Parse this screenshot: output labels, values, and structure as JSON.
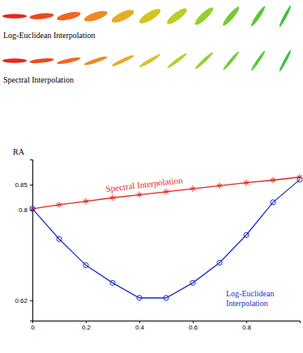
{
  "chart_data": {
    "type": "line",
    "y_label": "RA",
    "x": [
      0,
      0.1,
      0.2,
      0.3,
      0.4,
      0.5,
      0.6,
      0.7,
      0.8,
      0.9,
      1.0
    ],
    "series": [
      {
        "name": "Spectral Interpolation",
        "color": "#e3261c",
        "marker": "star",
        "line_style": "solid",
        "values": [
          0.802,
          0.81,
          0.817,
          0.824,
          0.83,
          0.836,
          0.842,
          0.848,
          0.854,
          0.859,
          0.865
        ]
      },
      {
        "name": "Log-Euclidean Interpolation",
        "color": "#1a2fc4",
        "marker": "circle",
        "line_style": "solid",
        "values": [
          0.802,
          0.742,
          0.69,
          0.655,
          0.625,
          0.625,
          0.655,
          0.695,
          0.75,
          0.815,
          0.86
        ]
      }
    ],
    "xlim": [
      0,
      1
    ],
    "ylim": [
      0.58,
      0.9
    ],
    "xticks": [
      0,
      0.2,
      0.4,
      0.6,
      0.8
    ],
    "yticks": [
      0.62,
      0.8,
      0.85
    ],
    "grid": false
  }
}
